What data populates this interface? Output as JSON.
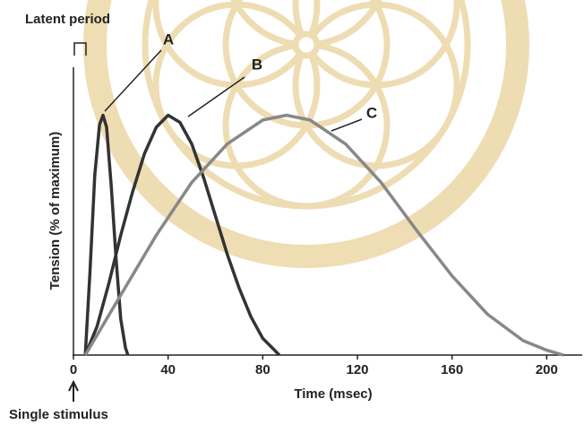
{
  "chart_data": {
    "type": "line",
    "x_label": "Time (msec)",
    "y_label": "Tension (% of maximum)",
    "annotations": [
      "Latent period",
      "Single stimulus"
    ],
    "xlim": [
      0,
      215
    ],
    "xticks": [
      0,
      40,
      80,
      120,
      160,
      200
    ],
    "ylim": [
      0,
      120
    ],
    "series": [
      {
        "name": "A",
        "color": "#333333",
        "x": [
          5,
          7,
          9,
          11,
          12.5,
          14,
          16,
          18,
          20,
          22,
          23
        ],
        "values": [
          0,
          35,
          75,
          96,
          100,
          95,
          70,
          40,
          15,
          3,
          0
        ]
      },
      {
        "name": "B",
        "color": "#333333",
        "x": [
          5,
          10,
          15,
          20,
          25,
          30,
          35,
          40,
          45,
          50,
          55,
          60,
          65,
          70,
          75,
          80,
          85,
          87
        ],
        "values": [
          0,
          12,
          30,
          50,
          68,
          84,
          95,
          100,
          97,
          88,
          74,
          58,
          42,
          28,
          16,
          7,
          2,
          0
        ]
      },
      {
        "name": "C",
        "color": "#888888",
        "x": [
          5,
          20,
          35,
          50,
          65,
          80,
          90,
          100,
          115,
          130,
          145,
          160,
          175,
          190,
          200,
          207
        ],
        "values": [
          0,
          25,
          50,
          72,
          88,
          98,
          100,
          98,
          88,
          72,
          52,
          33,
          17,
          6,
          2,
          0
        ]
      }
    ]
  }
}
